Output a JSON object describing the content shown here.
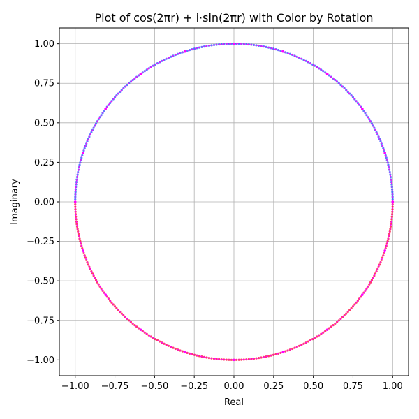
{
  "chart_data": {
    "type": "scatter",
    "title": "Plot of cos(2πr) + i·sin(2πr) with Color by Rotation",
    "xlabel": "Real",
    "ylabel": "Imaginary",
    "xlim": [
      -1.1,
      1.1
    ],
    "ylim": [
      -1.1,
      1.1
    ],
    "grid": true,
    "x_ticks": [
      -1.0,
      -0.75,
      -0.5,
      -0.25,
      0.0,
      0.25,
      0.5,
      0.75,
      1.0
    ],
    "y_ticks": [
      -1.0,
      -0.75,
      -0.5,
      -0.25,
      0.0,
      0.25,
      0.5,
      0.75,
      1.0
    ],
    "x_tick_labels": [
      "−1.00",
      "−0.75",
      "−0.50",
      "−0.25",
      "0.00",
      "0.25",
      "0.50",
      "0.75",
      "1.00"
    ],
    "y_tick_labels": [
      "−1.00",
      "−0.75",
      "−0.50",
      "−0.25",
      "0.00",
      "0.25",
      "0.50",
      "0.75",
      "1.00"
    ],
    "series": [
      {
        "function": "cos(2πr) + i·sin(2πr)",
        "x": [
          1.0,
          0.9511,
          0.809,
          0.5878,
          0.309,
          0.0,
          -0.309,
          -0.5878,
          -0.809,
          -0.9511,
          -1.0,
          -0.9511,
          -0.809,
          -0.5878,
          -0.309,
          0.0,
          0.309,
          0.5878,
          0.809,
          0.9511,
          1.0
        ],
        "y": [
          0.0,
          0.309,
          0.5878,
          0.809,
          0.9511,
          1.0,
          0.9511,
          0.809,
          0.5878,
          0.309,
          0.0,
          -0.309,
          -0.5878,
          -0.809,
          -0.9511,
          -1.0,
          -0.9511,
          -0.809,
          -0.5878,
          -0.309,
          0.0
        ],
        "color_by_rotation": [
          "#ff0033",
          "#2255ff",
          "#ff00ff"
        ]
      }
    ]
  }
}
